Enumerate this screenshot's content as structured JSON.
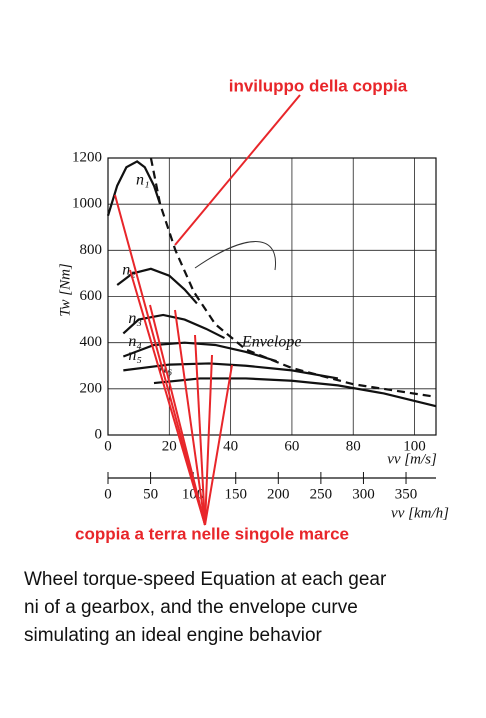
{
  "chart_data": {
    "type": "line",
    "title": "inviluppo della coppia",
    "subtitle": "coppia a terra nelle singole marce",
    "caption": [
      "Wheel torque-speed Equation at each gear",
      "ni of a gearbox, and the envelope curve",
      "simulating an ideal engine behavior"
    ],
    "y_label": "Tw [Nm]",
    "x_label": "vv [m/s]",
    "x2_label": "vv [km/h]",
    "xlim": [
      0,
      107
    ],
    "xticks": [
      0,
      20,
      40,
      60,
      80,
      100
    ],
    "ylim": [
      0,
      1200
    ],
    "yticks": [
      0,
      200,
      400,
      600,
      800,
      1000,
      1200
    ],
    "x2lim": [
      0,
      385.2
    ],
    "x2ticks": [
      0,
      50,
      100,
      150,
      200,
      250,
      300,
      350
    ],
    "grid": true,
    "series": [
      {
        "name": "n₁",
        "color": "#111111",
        "x": [
          0,
          3,
          6,
          9.5,
          12,
          15,
          17
        ],
        "values": [
          950,
          1080,
          1160,
          1185,
          1160,
          1080,
          1000
        ]
      },
      {
        "name": "n₂",
        "color": "#111111",
        "x": [
          3,
          8,
          14,
          20,
          25,
          29
        ],
        "values": [
          650,
          700,
          720,
          690,
          630,
          570
        ]
      },
      {
        "name": "n₃",
        "color": "#111111",
        "x": [
          5,
          10,
          18,
          25,
          32,
          38
        ],
        "values": [
          440,
          500,
          520,
          500,
          460,
          420
        ]
      },
      {
        "name": "n₄",
        "color": "#111111",
        "x": [
          5,
          15,
          25,
          35,
          45,
          55
        ],
        "values": [
          340,
          390,
          400,
          390,
          360,
          320
        ]
      },
      {
        "name": "n₅",
        "color": "#111111",
        "x": [
          5,
          20,
          33,
          45,
          60,
          75
        ],
        "values": [
          280,
          305,
          310,
          300,
          280,
          245
        ]
      },
      {
        "name": "n₆",
        "color": "#111111",
        "x": [
          15,
          30,
          45,
          60,
          75,
          90,
          107
        ],
        "values": [
          225,
          245,
          245,
          235,
          215,
          180,
          125
        ]
      },
      {
        "name": "Envelope",
        "color": "#111111",
        "dashed": true,
        "x": [
          14,
          17,
          22,
          28,
          35,
          45,
          60,
          80,
          107
        ],
        "values": [
          1200,
          1000,
          800,
          620,
          480,
          370,
          290,
          220,
          165
        ]
      }
    ]
  }
}
